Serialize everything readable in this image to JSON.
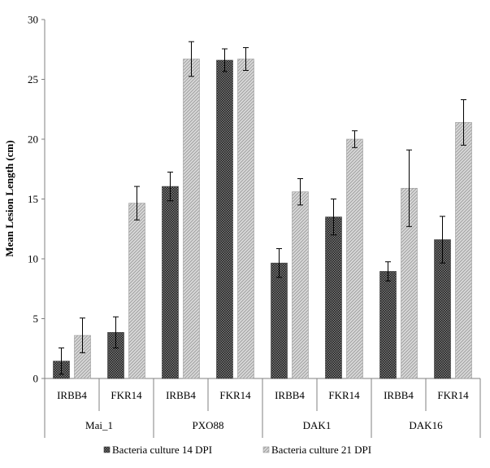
{
  "chart_data": {
    "type": "bar",
    "title": "",
    "ylabel": "Mean Lesion Length (cm)",
    "xlabel": "",
    "ylim": [
      0,
      30
    ],
    "yticks": [
      0,
      5,
      10,
      15,
      20,
      25,
      30
    ],
    "grid": false,
    "legend_position": "bottom",
    "groups": [
      {
        "label": "Mai_1",
        "categories": [
          "IRBB4",
          "FKR14"
        ]
      },
      {
        "label": "PXO88",
        "categories": [
          "IRBB4",
          "FKR14"
        ]
      },
      {
        "label": "DAK1",
        "categories": [
          "IRBB4",
          "FKR14"
        ]
      },
      {
        "label": "DAK16",
        "categories": [
          "IRBB4",
          "FKR14"
        ]
      }
    ],
    "categories": [
      "IRBB4",
      "FKR14",
      "IRBB4",
      "FKR14",
      "IRBB4",
      "FKR14",
      "IRBB4",
      "FKR14"
    ],
    "series": [
      {
        "name": "Bacteria culture 14 DPI",
        "color": "#4a4a4a",
        "values": [
          1.45,
          3.85,
          16.05,
          26.6,
          9.65,
          13.5,
          8.95,
          11.6
        ],
        "errors": [
          1.1,
          1.3,
          1.2,
          0.95,
          1.2,
          1.5,
          0.8,
          1.95
        ]
      },
      {
        "name": "Bacteria culture 21 DPI",
        "color": "#c4c4c4",
        "values": [
          3.6,
          14.65,
          26.7,
          26.7,
          15.6,
          20.0,
          15.9,
          21.4
        ],
        "errors": [
          1.45,
          1.4,
          1.45,
          0.95,
          1.1,
          0.7,
          3.2,
          1.9
        ]
      }
    ]
  }
}
